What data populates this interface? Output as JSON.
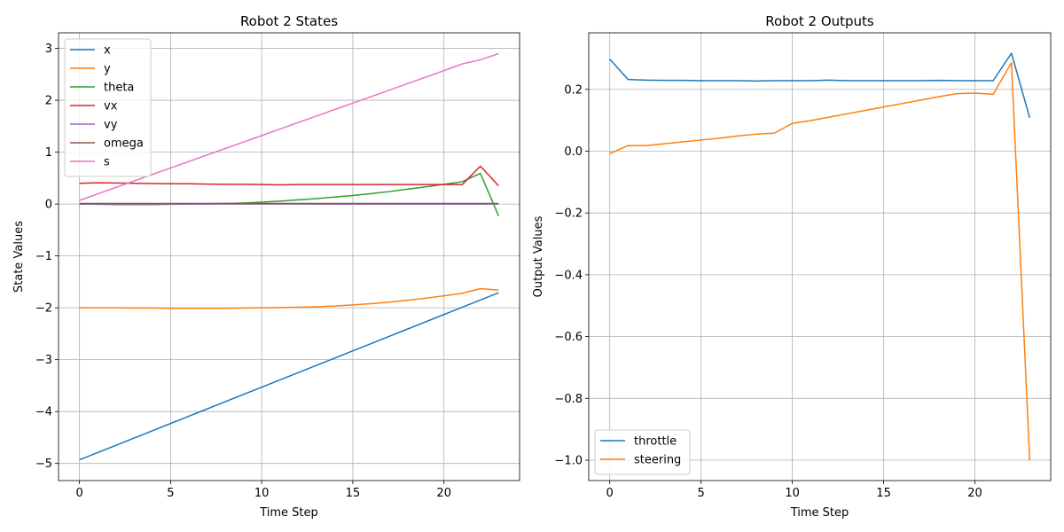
{
  "chart_data": [
    {
      "type": "line",
      "title": "Robot 2 States",
      "xlabel": "Time Step",
      "ylabel": "State Values",
      "xlim": [
        -1.15,
        24.15
      ],
      "ylim": [
        -5.33,
        3.3
      ],
      "xticks": [
        0,
        5,
        10,
        15,
        20
      ],
      "yticks": [
        -5,
        -4,
        -3,
        -2,
        -1,
        0,
        1,
        2,
        3
      ],
      "grid": true,
      "legend": "top-left",
      "x": [
        0,
        1,
        2,
        3,
        4,
        5,
        6,
        7,
        8,
        9,
        10,
        11,
        12,
        13,
        14,
        15,
        16,
        17,
        18,
        19,
        20,
        21,
        22,
        23
      ],
      "series": [
        {
          "name": "x",
          "color": "#1f77b4",
          "values": [
            -4.93,
            -4.79,
            -4.65,
            -4.51,
            -4.37,
            -4.23,
            -4.09,
            -3.95,
            -3.81,
            -3.67,
            -3.53,
            -3.39,
            -3.25,
            -3.11,
            -2.97,
            -2.83,
            -2.69,
            -2.55,
            -2.41,
            -2.27,
            -2.13,
            -1.99,
            -1.85,
            -1.71
          ]
        },
        {
          "name": "y",
          "color": "#ff7f0e",
          "values": [
            -2.0,
            -2.0,
            -2.0,
            -2.005,
            -2.005,
            -2.01,
            -2.01,
            -2.01,
            -2.01,
            -2.005,
            -2.0,
            -1.995,
            -1.99,
            -1.98,
            -1.965,
            -1.945,
            -1.92,
            -1.89,
            -1.855,
            -1.815,
            -1.77,
            -1.72,
            -1.63,
            -1.66
          ]
        },
        {
          "name": "theta",
          "color": "#2ca02c",
          "values": [
            0.0,
            -0.005,
            -0.01,
            -0.01,
            -0.01,
            -0.005,
            0.0,
            0.005,
            0.01,
            0.02,
            0.035,
            0.055,
            0.08,
            0.105,
            0.135,
            0.165,
            0.2,
            0.24,
            0.285,
            0.33,
            0.38,
            0.43,
            0.59,
            -0.23
          ]
        },
        {
          "name": "vx",
          "color": "#d62728",
          "values": [
            0.4,
            0.41,
            0.405,
            0.4,
            0.395,
            0.39,
            0.39,
            0.385,
            0.38,
            0.38,
            0.375,
            0.37,
            0.375,
            0.375,
            0.375,
            0.375,
            0.375,
            0.375,
            0.375,
            0.375,
            0.375,
            0.375,
            0.73,
            0.35
          ]
        },
        {
          "name": "vy",
          "color": "#9467bd",
          "values": [
            0,
            0,
            0,
            0,
            0,
            0,
            0,
            0,
            0,
            0,
            0,
            0,
            0,
            0,
            0,
            0,
            0,
            0,
            0,
            0,
            0,
            0,
            0,
            0
          ]
        },
        {
          "name": "omega",
          "color": "#8c564b",
          "values": [
            0.01,
            0.01,
            0.01,
            0.01,
            0.01,
            0.01,
            0.01,
            0.01,
            0.01,
            0.01,
            0.01,
            0.01,
            0.01,
            0.01,
            0.01,
            0.01,
            0.01,
            0.01,
            0.01,
            0.01,
            0.01,
            0.01,
            0.01,
            0.01
          ]
        },
        {
          "name": "s",
          "color": "#e377c2",
          "values": [
            0.07,
            0.195,
            0.32,
            0.445,
            0.57,
            0.695,
            0.82,
            0.945,
            1.07,
            1.195,
            1.32,
            1.445,
            1.57,
            1.695,
            1.82,
            1.945,
            2.07,
            2.195,
            2.32,
            2.445,
            2.57,
            2.7,
            2.78,
            2.9
          ]
        }
      ]
    },
    {
      "type": "line",
      "title": "Robot 2 Outputs",
      "xlabel": "Time Step",
      "ylabel": "Output Values",
      "xlim": [
        -1.15,
        24.15
      ],
      "ylim": [
        -1.066,
        0.383
      ],
      "xticks": [
        0,
        5,
        10,
        15,
        20
      ],
      "yticks": [
        -1.0,
        -0.8,
        -0.6,
        -0.4,
        -0.2,
        0.0,
        0.2
      ],
      "ytick_labels": [
        "−1.0",
        "−0.8",
        "−0.6",
        "−0.4",
        "−0.2",
        "0.0",
        "0.2"
      ],
      "grid": true,
      "legend": "bottom-left",
      "x": [
        0,
        1,
        2,
        3,
        4,
        5,
        6,
        7,
        8,
        9,
        10,
        11,
        12,
        13,
        14,
        15,
        16,
        17,
        18,
        19,
        20,
        21,
        22,
        23
      ],
      "series": [
        {
          "name": "throttle",
          "color": "#1f77b4",
          "values": [
            0.298,
            0.232,
            0.23,
            0.229,
            0.229,
            0.228,
            0.228,
            0.228,
            0.227,
            0.228,
            0.228,
            0.228,
            0.23,
            0.228,
            0.228,
            0.228,
            0.228,
            0.228,
            0.229,
            0.228,
            0.228,
            0.228,
            0.317,
            0.108
          ]
        },
        {
          "name": "steering",
          "color": "#ff7f0e",
          "values": [
            -0.008,
            0.018,
            0.018,
            0.024,
            0.03,
            0.036,
            0.042,
            0.049,
            0.055,
            0.058,
            0.09,
            0.099,
            0.11,
            0.121,
            0.132,
            0.143,
            0.154,
            0.165,
            0.176,
            0.186,
            0.188,
            0.184,
            0.286,
            -1.0
          ]
        }
      ]
    }
  ]
}
